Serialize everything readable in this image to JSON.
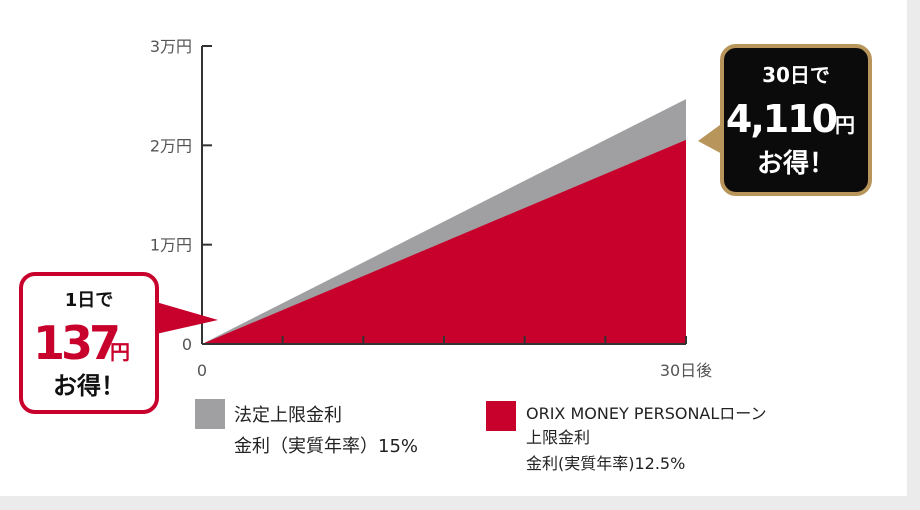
{
  "colors": {
    "legal_series": "#a0a0a2",
    "orix_series": "#c8002c",
    "axis": "#333333",
    "callout_black": "#0b0b0b",
    "callout_gold": "#b8955a",
    "callout_red_border": "#c8002c"
  },
  "chart_data": {
    "type": "area",
    "xlim": [
      0,
      30
    ],
    "ylim": [
      0,
      30000
    ],
    "x_tick_labels": [
      "0",
      "30日後"
    ],
    "y_tick_labels": [
      "0",
      "1万円",
      "2万円",
      "3万円"
    ],
    "y_ticks": [
      0,
      10000,
      20000,
      30000
    ],
    "x_minor_ticks": [
      5,
      10,
      15,
      20,
      25,
      30
    ],
    "series": [
      {
        "key": "legal",
        "x": [
          0,
          30
        ],
        "values": [
          0,
          24657
        ]
      },
      {
        "key": "orix",
        "x": [
          0,
          30
        ],
        "values": [
          0,
          20547
        ]
      }
    ]
  },
  "legend": [
    {
      "key": "legal",
      "lines": [
        "法定上限金利",
        "金利（実質年率）15%"
      ]
    },
    {
      "key": "orix",
      "lines": [
        "ORIX MONEY PERSONALローン",
        "上限金利",
        "金利(実質年率)12.5%"
      ]
    }
  ],
  "callouts": {
    "left": {
      "line1": "1日で",
      "amount": "137",
      "unit": "円",
      "line3": "お得！"
    },
    "right": {
      "line1": "30日で",
      "amount": "4,110",
      "unit": "円",
      "line3": "お得！"
    }
  }
}
